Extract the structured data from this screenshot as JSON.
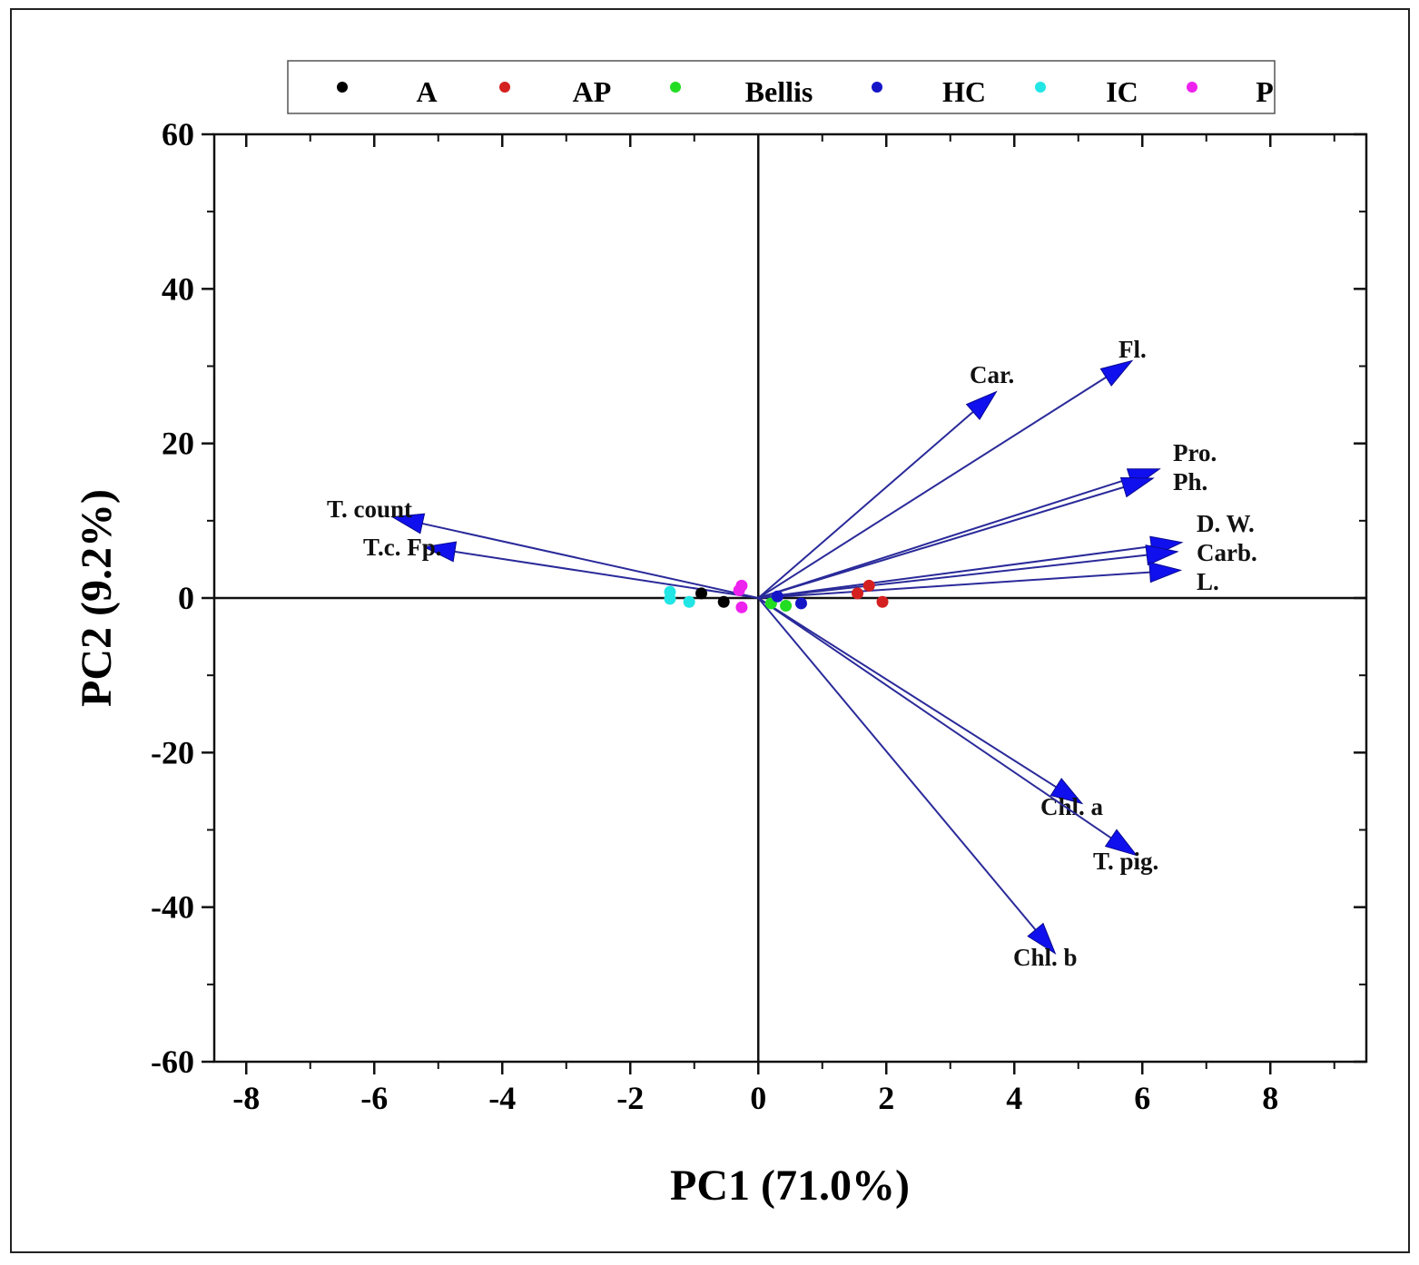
{
  "chart_data": {
    "type": "scatter",
    "subtype": "pca-biplot",
    "xlabel": "PC1 (71.0%)",
    "ylabel": "PC2 (9.2%)",
    "xlim": [
      -8.5,
      9.5
    ],
    "ylim": [
      -60,
      60
    ],
    "xticks": [
      -8,
      -6,
      -4,
      -2,
      0,
      2,
      4,
      6,
      8
    ],
    "yticks": [
      -60,
      -40,
      -20,
      0,
      20,
      40,
      60
    ],
    "legend_position": "top",
    "series": [
      {
        "name": "A",
        "color": "#000000",
        "points": [
          [
            -0.89,
            0.6
          ],
          [
            -0.54,
            -0.5
          ]
        ]
      },
      {
        "name": "AP",
        "color": "#d42020",
        "points": [
          [
            1.55,
            0.6
          ],
          [
            1.73,
            1.6
          ],
          [
            1.94,
            -0.5
          ]
        ]
      },
      {
        "name": "Bellis",
        "color": "#22dd22",
        "points": [
          [
            0.43,
            -1.0
          ],
          [
            0.2,
            -0.7
          ]
        ]
      },
      {
        "name": "HC",
        "color": "#1515c8",
        "points": [
          [
            0.67,
            -0.7
          ],
          [
            0.3,
            0.2
          ]
        ]
      },
      {
        "name": "IC",
        "color": "#22e5e5",
        "points": [
          [
            -1.38,
            0.8
          ],
          [
            -1.38,
            -0.1
          ],
          [
            -1.08,
            -0.5
          ]
        ]
      },
      {
        "name": "P",
        "color": "#ee22ee",
        "points": [
          [
            -0.26,
            1.6
          ],
          [
            -0.26,
            -1.2
          ],
          [
            -0.3,
            1.0
          ]
        ]
      }
    ],
    "loadings": [
      {
        "label": "Car.",
        "x": 3.72,
        "y": 26.7
      },
      {
        "label": "Fl.",
        "x": 5.84,
        "y": 30.7
      },
      {
        "label": "Pro.",
        "x": 6.27,
        "y": 16.7
      },
      {
        "label": "Ph.",
        "x": 6.17,
        "y": 15.5
      },
      {
        "label": "D. W.",
        "x": 6.62,
        "y": 7.2
      },
      {
        "label": "Carb.",
        "x": 6.55,
        "y": 6.0
      },
      {
        "label": "L.",
        "x": 6.6,
        "y": 3.6
      },
      {
        "label": "T. count",
        "x": -5.72,
        "y": 10.5
      },
      {
        "label": "T.c. Fp.",
        "x": -5.22,
        "y": 6.6
      },
      {
        "label": "Chl. a",
        "x": 5.06,
        "y": -26.6
      },
      {
        "label": "T. pig.",
        "x": 5.91,
        "y": -33.3
      },
      {
        "label": "Chl. b",
        "x": 4.64,
        "y": -46.0
      }
    ],
    "arrow_line_color": "#2a2a9a",
    "arrow_head_color": "#1010ee"
  }
}
